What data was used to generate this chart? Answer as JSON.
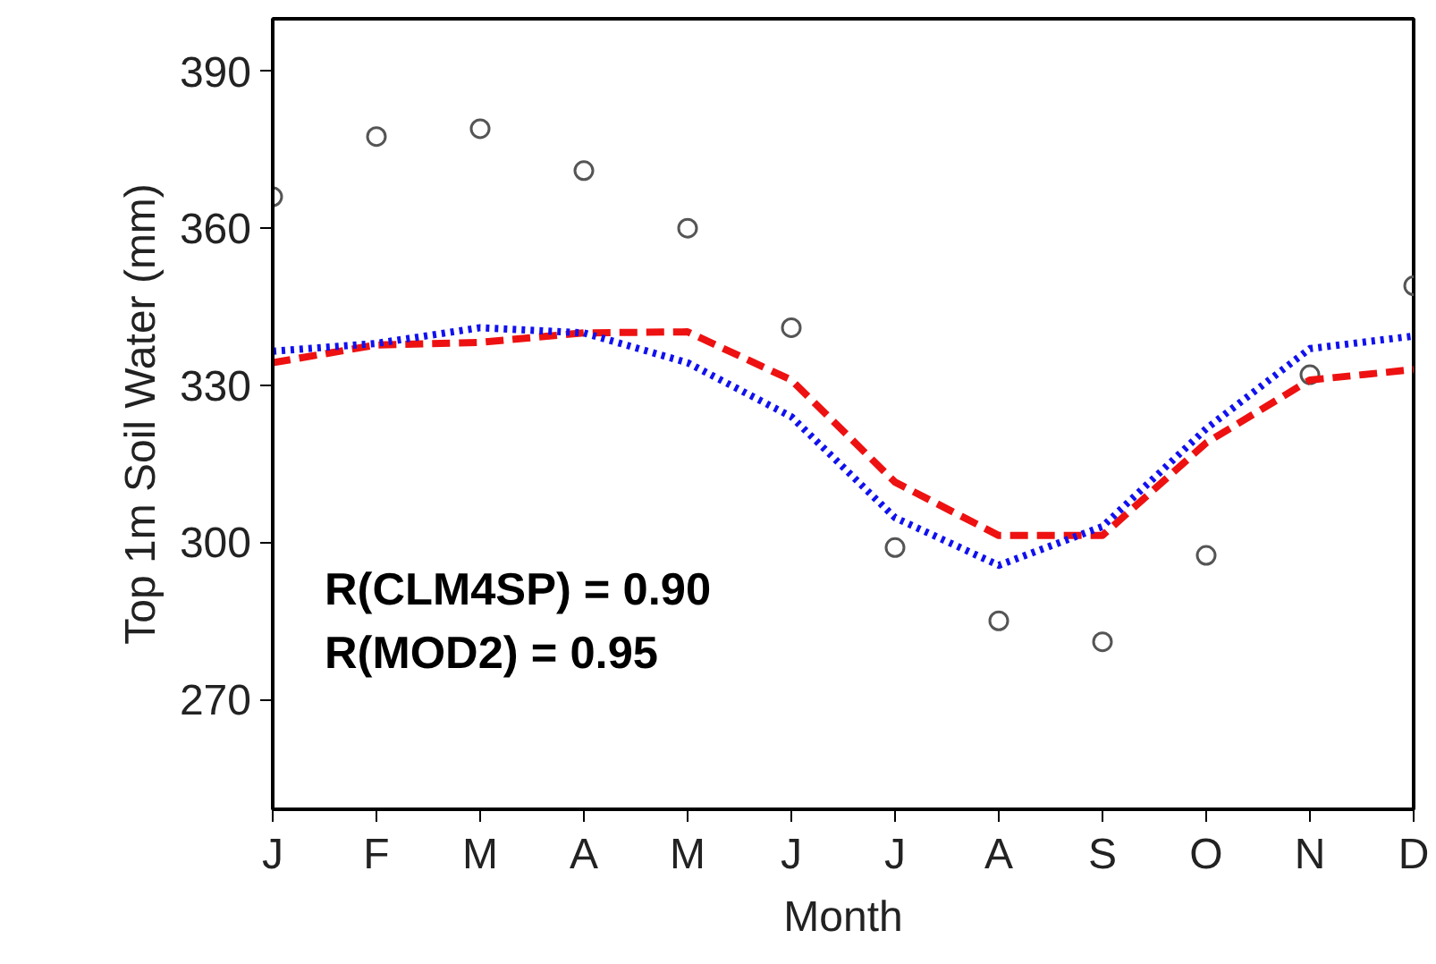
{
  "chart_data": {
    "type": "line",
    "xlabel": "Month",
    "ylabel": "Top 1m Soil Water (mm)",
    "categories": [
      "J",
      "F",
      "M",
      "A",
      "M",
      "J",
      "J",
      "A",
      "S",
      "O",
      "N",
      "D"
    ],
    "series": [
      {
        "type": "scatter",
        "color": "#555555",
        "marker": "circle",
        "values": [
          366,
          377.5,
          379,
          371,
          360,
          341,
          299,
          285,
          281,
          297.5,
          332,
          349
        ]
      },
      {
        "color": "#ee1111",
        "line_style": "dashed",
        "marker": "none",
        "values": [
          334.3,
          337.7,
          338.2,
          340,
          340.2,
          331,
          311.5,
          301.3,
          301.3,
          319,
          331,
          333
        ]
      },
      {
        "color": "#1111ee",
        "line_style": "dotted",
        "marker": "none",
        "values": [
          336.5,
          338,
          341,
          340,
          334.3,
          324,
          304.7,
          295.6,
          303,
          321.7,
          337,
          339.4
        ]
      }
    ],
    "ylim": [
      249,
      400
    ],
    "yticks": [
      270,
      300,
      330,
      360,
      390
    ],
    "grid": false,
    "annotations": [
      "R(CLM4SP)  = 0.90",
      "R(MOD2)      = 0.95"
    ]
  }
}
